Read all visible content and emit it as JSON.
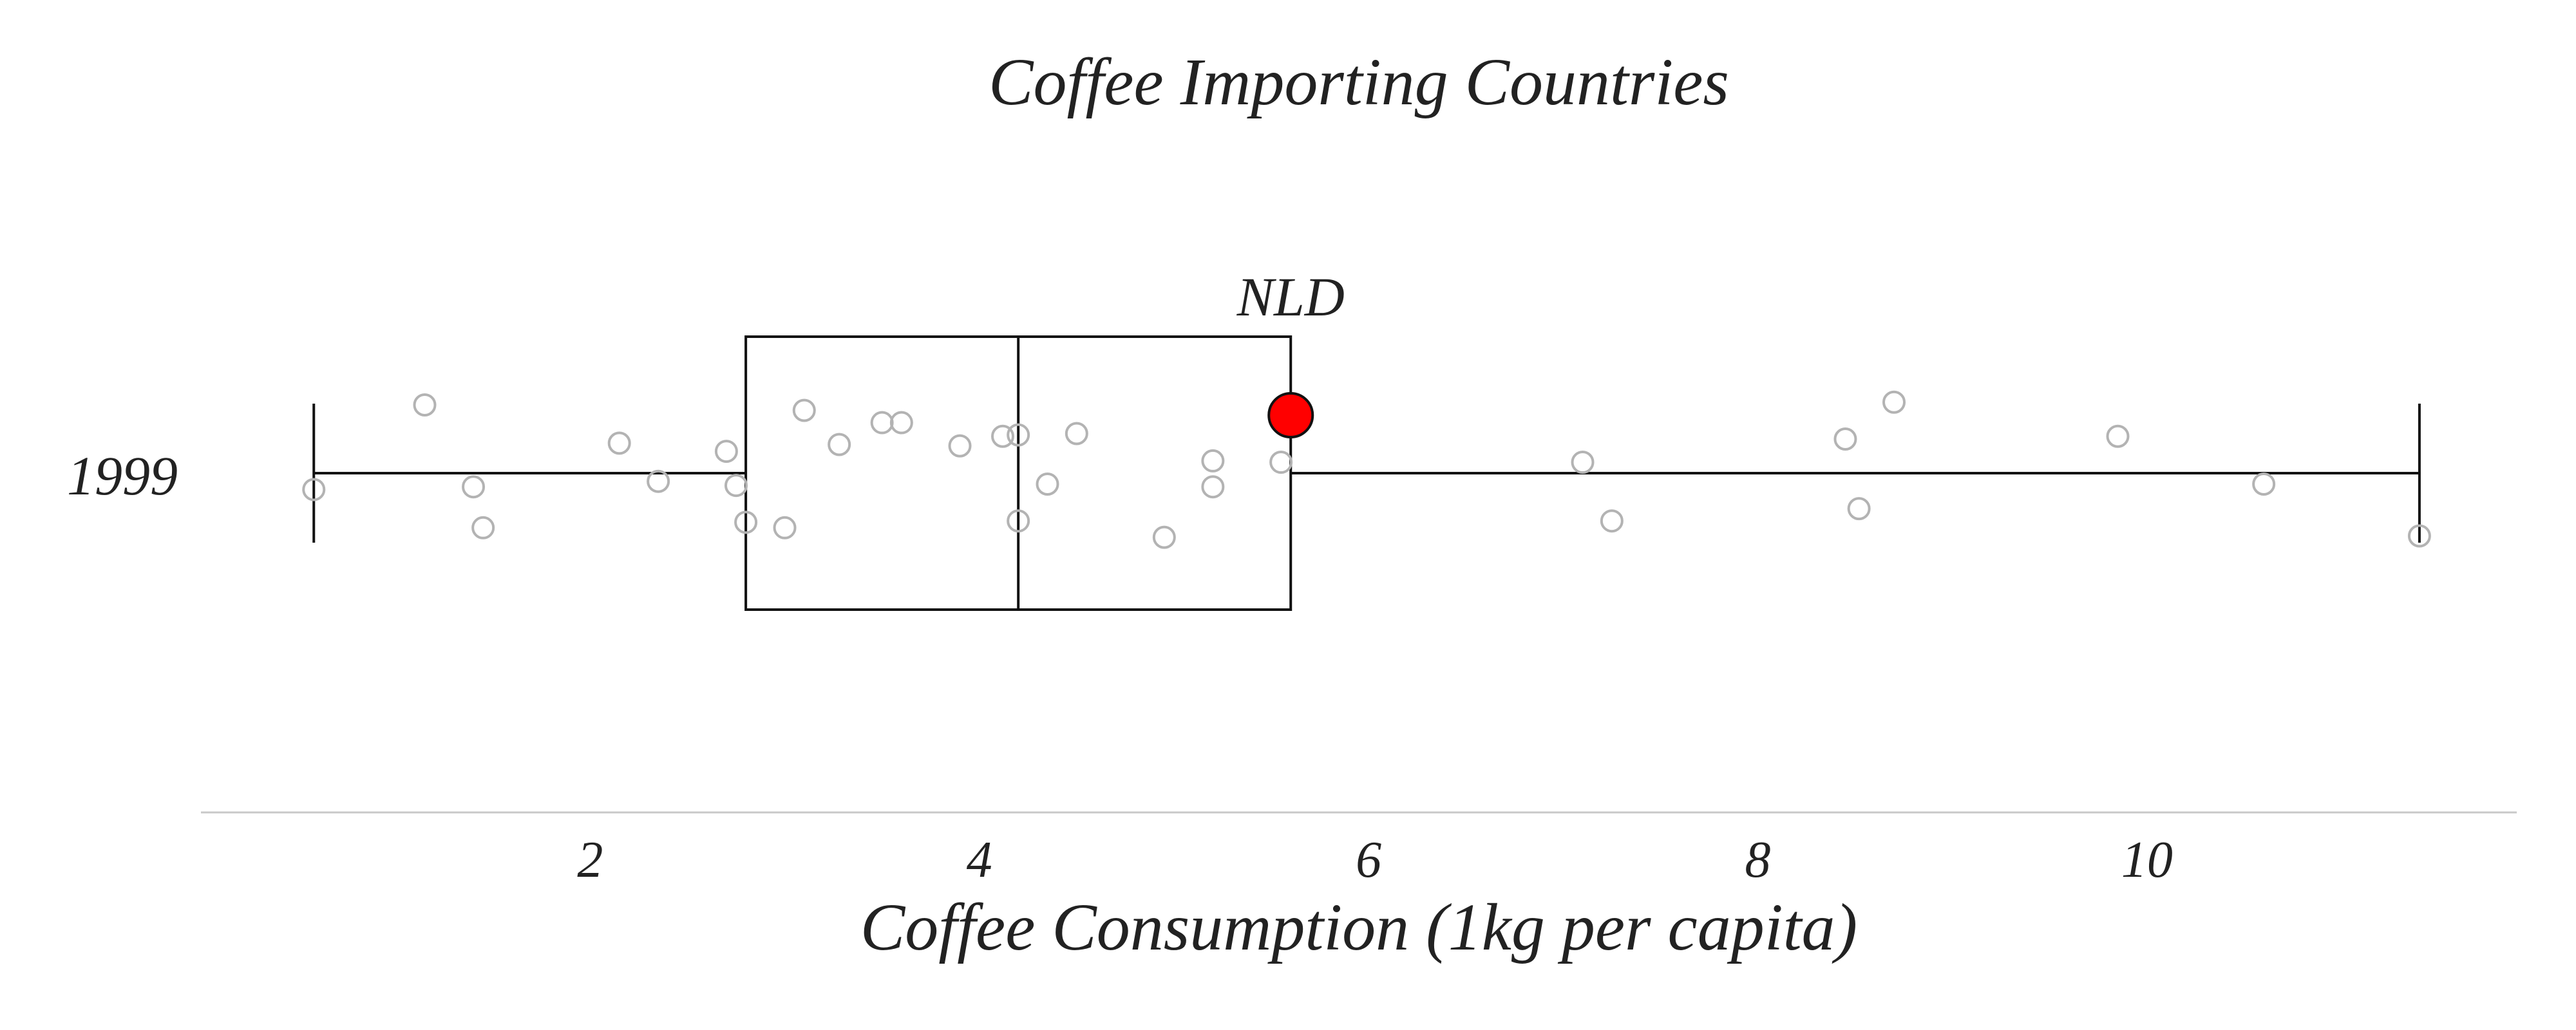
{
  "chart_data": {
    "type": "box",
    "title": "Coffee Importing Countries",
    "xlabel": "Coffee Consumption (1kg per capita)",
    "ylabel": "",
    "category": "1999",
    "xlim": [
      0.0,
      11.9
    ],
    "xticks": [
      2,
      4,
      6,
      8,
      10
    ],
    "grid": false,
    "box": {
      "min": 0.58,
      "q1": 2.8,
      "median": 4.2,
      "q3": 5.6,
      "max": 11.4
    },
    "highlight": {
      "label": "NLD",
      "value": 5.6,
      "color": "#ff0000"
    },
    "points": [
      {
        "x": 0.58,
        "jitter": -0.12
      },
      {
        "x": 1.15,
        "jitter": 0.5
      },
      {
        "x": 1.4,
        "jitter": -0.1
      },
      {
        "x": 1.45,
        "jitter": -0.4
      },
      {
        "x": 2.15,
        "jitter": 0.22
      },
      {
        "x": 2.35,
        "jitter": -0.06
      },
      {
        "x": 2.7,
        "jitter": 0.16
      },
      {
        "x": 2.75,
        "jitter": -0.09
      },
      {
        "x": 2.8,
        "jitter": -0.36
      },
      {
        "x": 3.1,
        "jitter": 0.46
      },
      {
        "x": 3.0,
        "jitter": -0.4
      },
      {
        "x": 3.28,
        "jitter": 0.21
      },
      {
        "x": 3.5,
        "jitter": 0.37
      },
      {
        "x": 3.6,
        "jitter": 0.37
      },
      {
        "x": 3.9,
        "jitter": 0.2
      },
      {
        "x": 4.12,
        "jitter": 0.27
      },
      {
        "x": 4.2,
        "jitter": 0.28
      },
      {
        "x": 4.2,
        "jitter": -0.35
      },
      {
        "x": 4.35,
        "jitter": -0.08
      },
      {
        "x": 4.5,
        "jitter": 0.29
      },
      {
        "x": 4.95,
        "jitter": -0.47
      },
      {
        "x": 5.2,
        "jitter": 0.09
      },
      {
        "x": 5.2,
        "jitter": -0.1
      },
      {
        "x": 5.55,
        "jitter": 0.08
      },
      {
        "x": 7.1,
        "jitter": 0.08
      },
      {
        "x": 7.25,
        "jitter": -0.35
      },
      {
        "x": 8.45,
        "jitter": 0.25
      },
      {
        "x": 8.52,
        "jitter": -0.26
      },
      {
        "x": 8.7,
        "jitter": 0.52
      },
      {
        "x": 9.85,
        "jitter": 0.27
      },
      {
        "x": 10.6,
        "jitter": -0.08
      },
      {
        "x": 11.4,
        "jitter": -0.46
      }
    ],
    "colors": {
      "box_stroke": "#111111",
      "point_stroke": "#b3b3b3",
      "axis_line": "#c8c8c8",
      "text": "#222222"
    }
  }
}
